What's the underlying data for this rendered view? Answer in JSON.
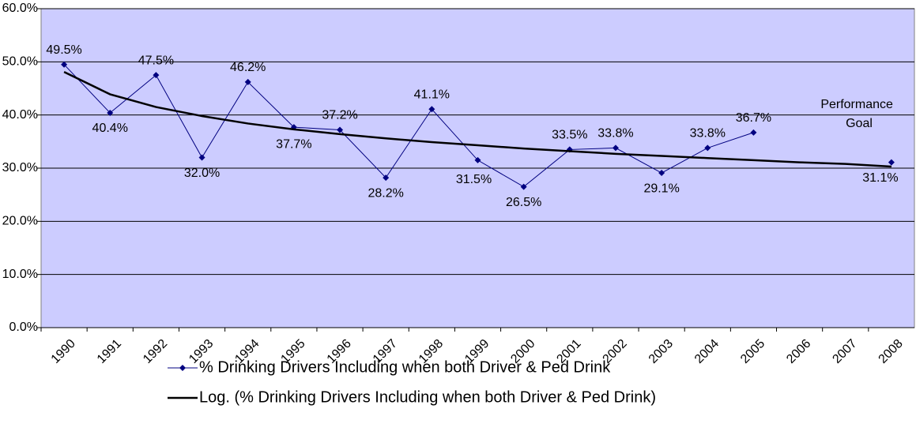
{
  "chart_data": {
    "type": "line",
    "categories": [
      "1990",
      "1991",
      "1992",
      "1993",
      "1994",
      "1995",
      "1996",
      "1997",
      "1998",
      "1999",
      "2000",
      "2001",
      "2002",
      "2003",
      "2004",
      "2005",
      "2006",
      "2007",
      "2008"
    ],
    "series": [
      {
        "name": "% Drinking Drivers Including when both Driver & Ped Drink",
        "color": "#000080",
        "values": [
          49.5,
          40.4,
          47.5,
          32.0,
          46.2,
          37.7,
          37.2,
          28.2,
          41.1,
          31.5,
          26.5,
          33.5,
          33.8,
          29.1,
          33.8,
          36.7,
          null,
          null,
          31.1
        ],
        "value_labels": [
          "49.5%",
          "40.4%",
          "47.5%",
          "32.0%",
          "46.2%",
          "37.7%",
          "37.2%",
          "28.2%",
          "41.1%",
          "31.5%",
          "26.5%",
          "33.5%",
          "33.8%",
          "29.1%",
          "33.8%",
          "36.7%",
          null,
          null,
          "31.1%"
        ]
      },
      {
        "name": "Log. (% Drinking Drivers Including when both Driver & Ped Drink)",
        "color": "#000000",
        "values": [
          48.1,
          43.9,
          41.5,
          39.8,
          38.4,
          37.3,
          36.4,
          35.6,
          34.9,
          34.3,
          33.7,
          33.2,
          32.7,
          32.3,
          31.9,
          31.5,
          31.1,
          30.8,
          30.3
        ]
      }
    ],
    "annotation": "Performance Goal",
    "ylim": [
      0,
      60
    ],
    "yticks": [
      {
        "value": 0,
        "label": "0.0%"
      },
      {
        "value": 10,
        "label": "10.0%"
      },
      {
        "value": 20,
        "label": "20.0%"
      },
      {
        "value": 30,
        "label": "30.0%"
      },
      {
        "value": 40,
        "label": "40.0%"
      },
      {
        "value": 50,
        "label": "50.0%"
      },
      {
        "value": 60,
        "label": "60.0%"
      }
    ],
    "grid": true,
    "plot_background": "#ccccff"
  }
}
